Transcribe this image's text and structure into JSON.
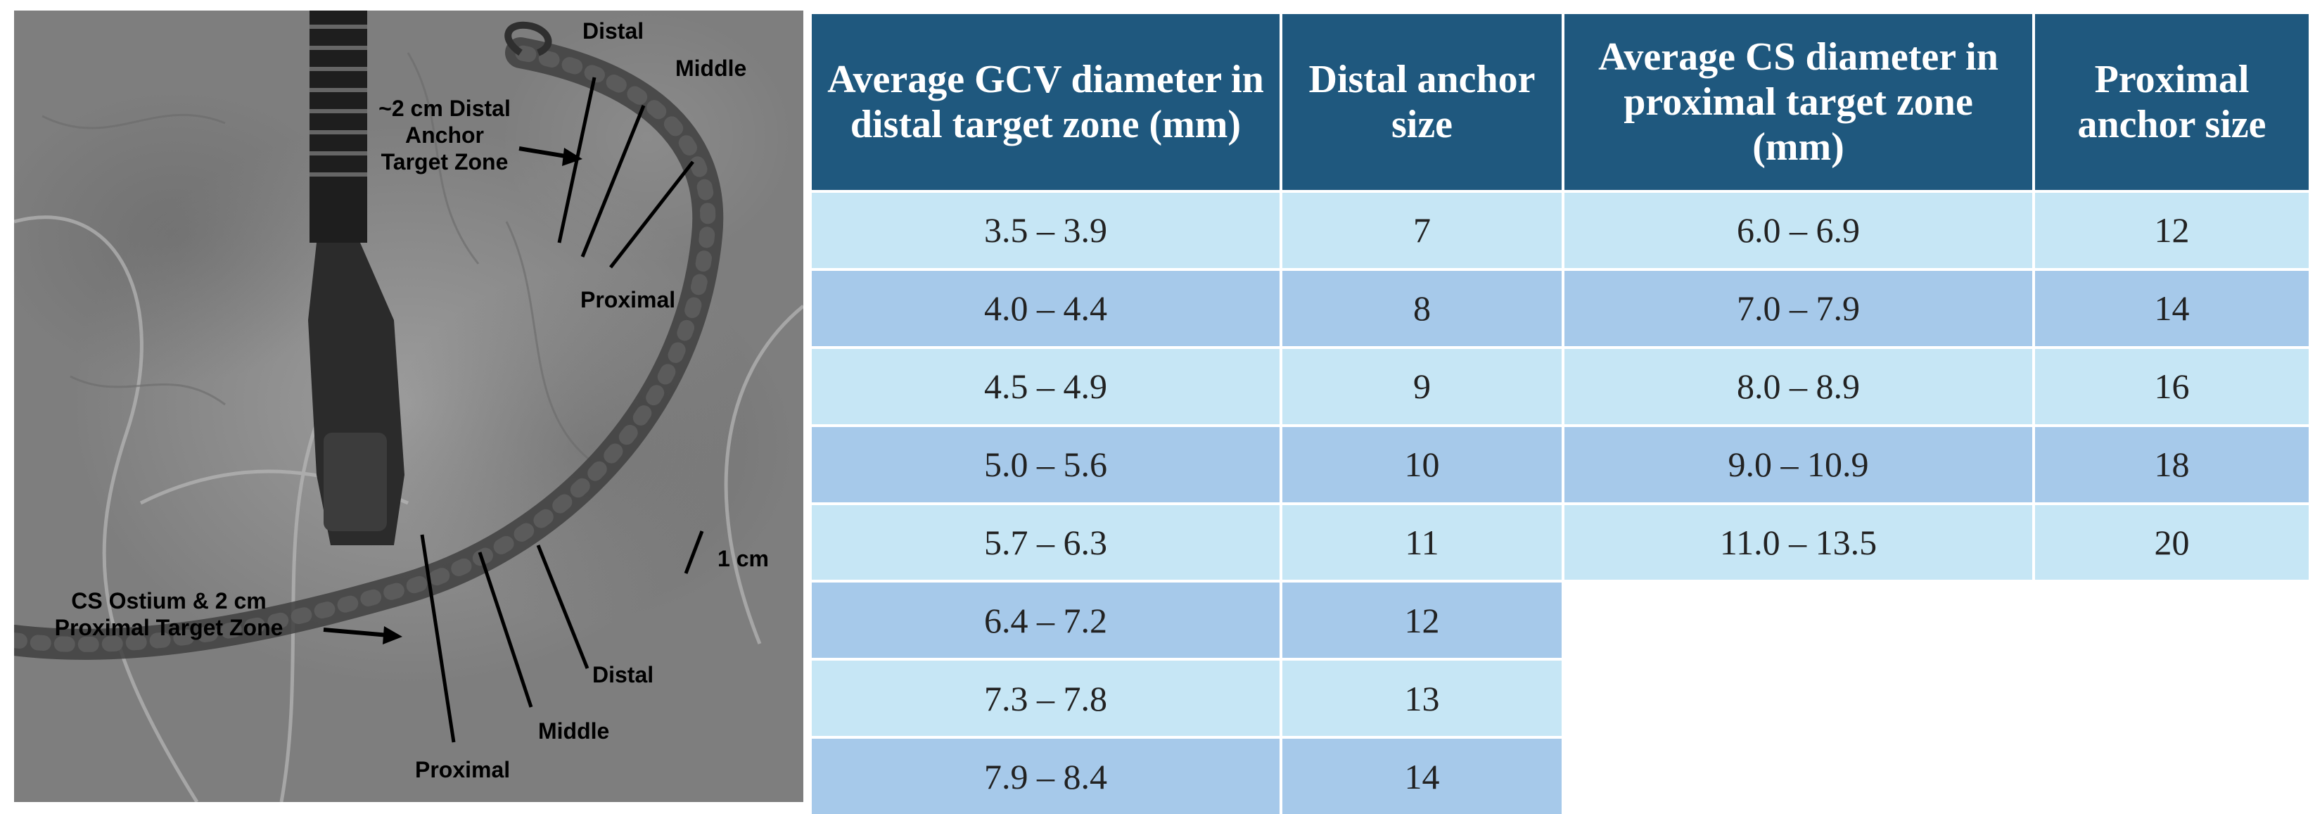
{
  "figure_labels": {
    "distal_top": "Distal",
    "middle_top": "Middle",
    "distal_zone_line1": "~2 cm Distal",
    "distal_zone_line2": "Anchor",
    "distal_zone_line3": "Target Zone",
    "proximal_top": "Proximal",
    "scale": "1 cm",
    "ostium_line1": "CS Ostium & 2 cm",
    "ostium_line2": "Proximal Target Zone",
    "distal_bottom": "Distal",
    "middle_bottom": "Middle",
    "proximal_bottom": "Proximal"
  },
  "table": {
    "headers": [
      "Average GCV diameter in distal target zone (mm)",
      "Distal anchor size",
      "Average CS diameter in proximal target zone (mm)",
      "Proximal anchor size"
    ],
    "rows": [
      [
        "3.5 – 3.9",
        "7",
        "6.0 – 6.9",
        "12"
      ],
      [
        "4.0 – 4.4",
        "8",
        "7.0 – 7.9",
        "14"
      ],
      [
        "4.5 – 4.9",
        "9",
        "8.0 – 8.9",
        "16"
      ],
      [
        "5.0 – 5.6",
        "10",
        "9.0 – 10.9",
        "18"
      ],
      [
        "5.7 – 6.3",
        "11",
        "11.0 – 13.5",
        "20"
      ],
      [
        "6.4 – 7.2",
        "12",
        "",
        ""
      ],
      [
        "7.3 – 7.8",
        "13",
        "",
        ""
      ],
      [
        "7.9 – 8.4",
        "14",
        "",
        ""
      ]
    ]
  },
  "colors": {
    "header_bg": "#1f587e",
    "row_light": "#c6e6f5",
    "row_dark": "#a6c9ea"
  }
}
